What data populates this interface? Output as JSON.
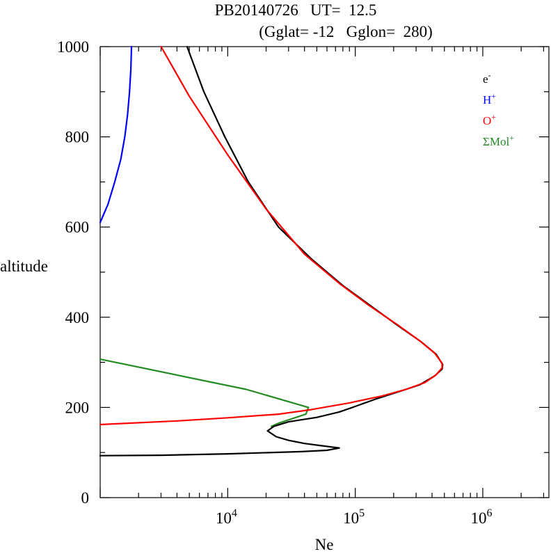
{
  "chart_data": {
    "type": "line",
    "title_line1": "PB20140726   UT=  12.5",
    "title_line2": "(Gglat= -12   Gglon=  280)",
    "xlabel": "Ne",
    "ylabel": "altitude",
    "x_scale": "log",
    "xlim": [
      1000,
      3300000
    ],
    "ylim": [
      0,
      1000
    ],
    "x_tick_labels": [
      {
        "base": "10",
        "exp": "4"
      },
      {
        "base": "10",
        "exp": "5"
      },
      {
        "base": "10",
        "exp": "6"
      }
    ],
    "x_ticks": [
      10000,
      100000,
      1000000
    ],
    "y_ticks": [
      0,
      200,
      400,
      600,
      800,
      1000
    ],
    "legend_position": "top-right",
    "series": [
      {
        "name": "e-",
        "label_base": "e",
        "label_sup": "-",
        "color": "#000000",
        "points": [
          [
            1000,
            93
          ],
          [
            3000,
            94
          ],
          [
            10000,
            97
          ],
          [
            38000,
            102
          ],
          [
            60000,
            105
          ],
          [
            75000,
            110
          ],
          [
            55000,
            115
          ],
          [
            40000,
            120
          ],
          [
            30000,
            127
          ],
          [
            24000,
            135
          ],
          [
            20500,
            148
          ],
          [
            23000,
            158
          ],
          [
            30000,
            168
          ],
          [
            50000,
            178
          ],
          [
            75000,
            190
          ],
          [
            95000,
            200
          ],
          [
            150000,
            220
          ],
          [
            220000,
            235
          ],
          [
            320000,
            250
          ],
          [
            420000,
            270
          ],
          [
            480000,
            285
          ],
          [
            485000,
            295
          ],
          [
            430000,
            318
          ],
          [
            330000,
            345
          ],
          [
            220000,
            380
          ],
          [
            140000,
            420
          ],
          [
            80000,
            470
          ],
          [
            45000,
            530
          ],
          [
            25000,
            600
          ],
          [
            14500,
            700
          ],
          [
            9500,
            800
          ],
          [
            6500,
            900
          ],
          [
            4800,
            1000
          ]
        ]
      },
      {
        "name": "H+",
        "label_base": "H",
        "label_sup": "+",
        "color": "#0000ff",
        "points": [
          [
            1000,
            610
          ],
          [
            1150,
            650
          ],
          [
            1300,
            700
          ],
          [
            1450,
            750
          ],
          [
            1560,
            800
          ],
          [
            1640,
            850
          ],
          [
            1700,
            900
          ],
          [
            1740,
            950
          ],
          [
            1760,
            1000
          ]
        ]
      },
      {
        "name": "O+",
        "label_base": "O",
        "label_sup": "+",
        "color": "#ff0000",
        "points": [
          [
            1000,
            162
          ],
          [
            4000,
            170
          ],
          [
            10000,
            177
          ],
          [
            25000,
            185
          ],
          [
            45000,
            195
          ],
          [
            90000,
            210
          ],
          [
            160000,
            225
          ],
          [
            250000,
            240
          ],
          [
            350000,
            255
          ],
          [
            430000,
            272
          ],
          [
            480000,
            288
          ],
          [
            480000,
            298
          ],
          [
            420000,
            320
          ],
          [
            320000,
            348
          ],
          [
            210000,
            385
          ],
          [
            130000,
            425
          ],
          [
            75000,
            475
          ],
          [
            40000,
            540
          ],
          [
            20000,
            640
          ],
          [
            10000,
            760
          ],
          [
            5000,
            890
          ],
          [
            3000,
            1000
          ]
        ]
      },
      {
        "name": "ΣMol+",
        "label_base": "ΣMol",
        "label_sup": "+",
        "color": "#228b22",
        "points": [
          [
            1000,
            307
          ],
          [
            14000,
            240
          ],
          [
            43000,
            200
          ],
          [
            41000,
            185
          ],
          [
            25000,
            165
          ],
          [
            22000,
            158
          ]
        ]
      }
    ]
  }
}
